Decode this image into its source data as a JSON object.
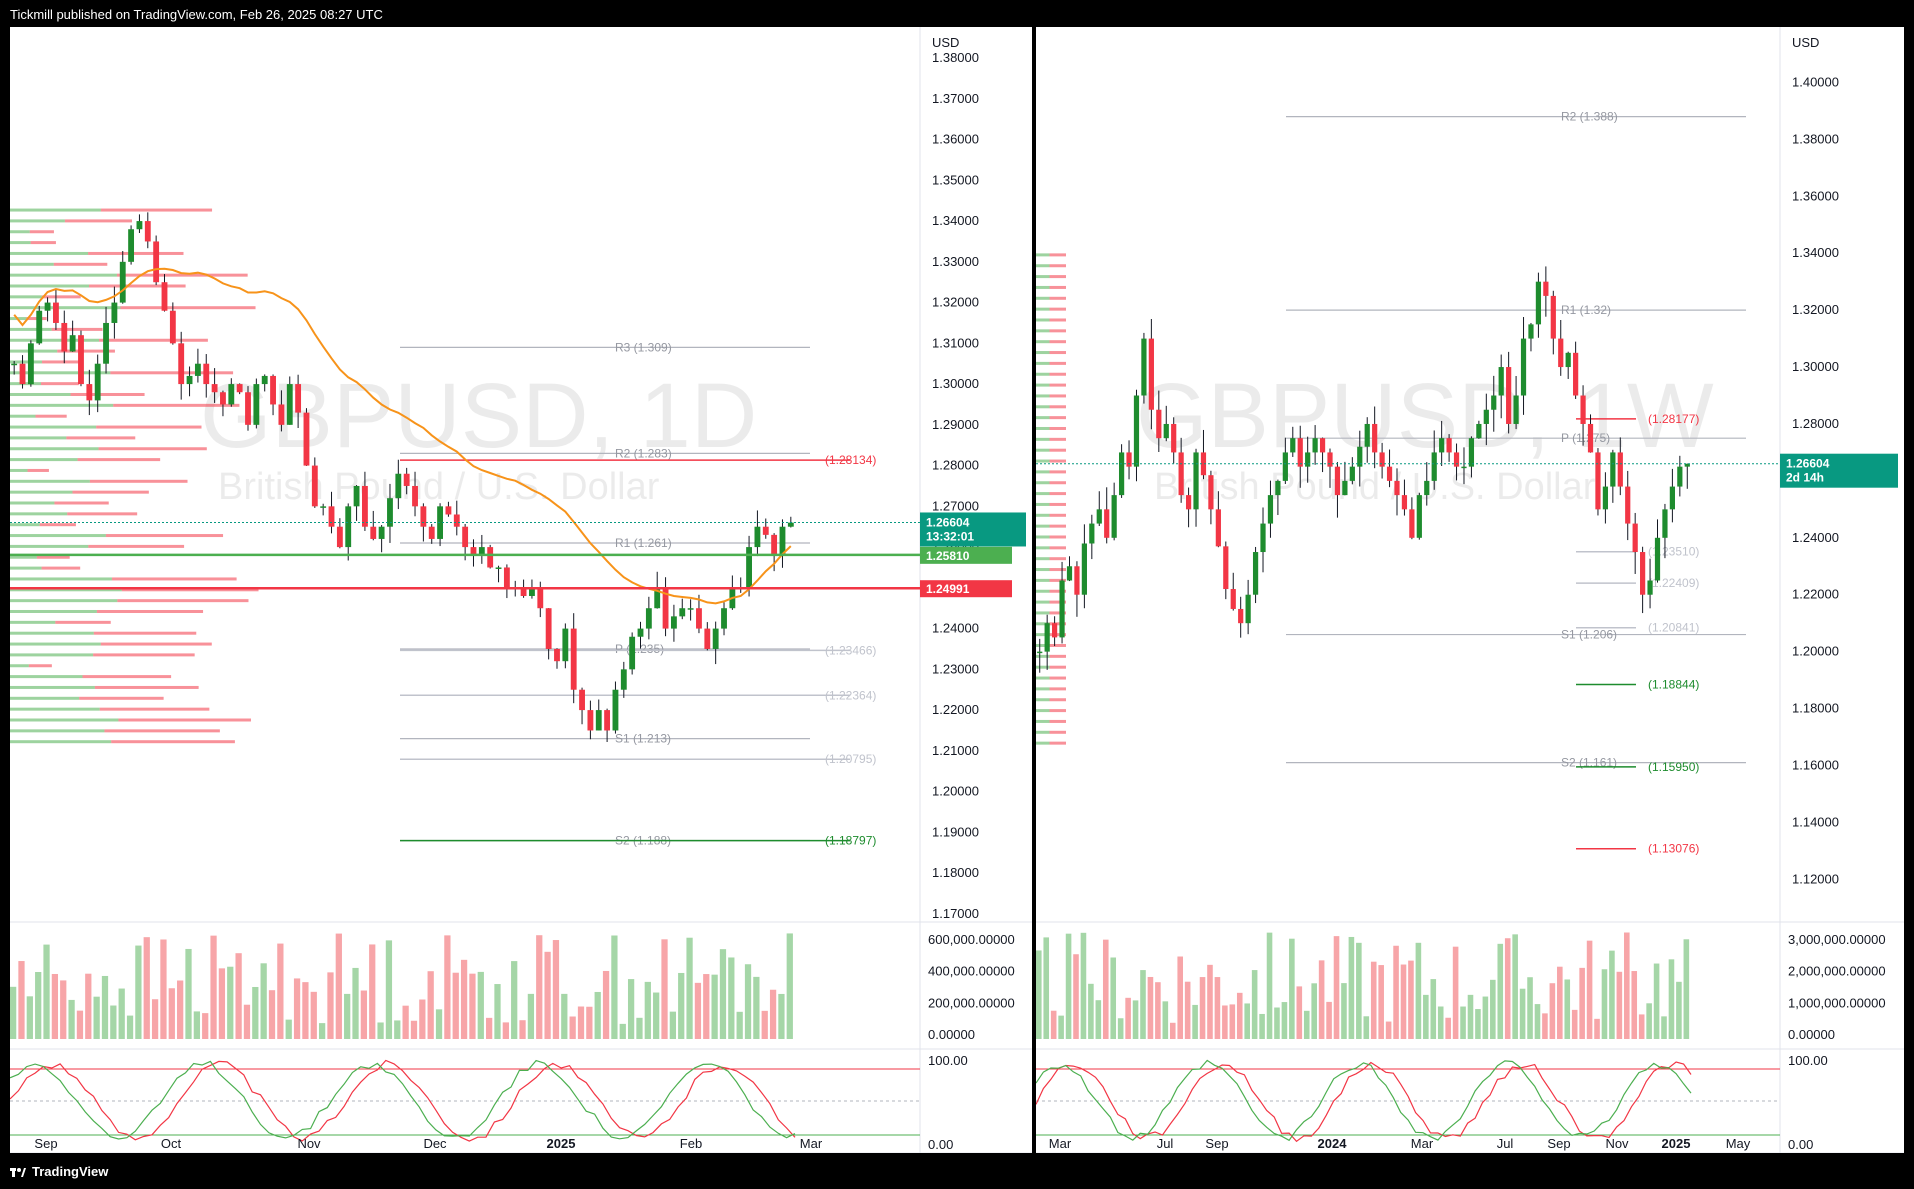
{
  "header": {
    "published": "Tickmill published on TradingView.com, Feb 26, 2025 08:27 UTC"
  },
  "footer": {
    "brand": "TradingView"
  },
  "chart_data": [
    {
      "type": "candlestick",
      "symbol": "GBPUSD",
      "timeframe": "1D",
      "watermark_title": "GBPUSD, 1D",
      "watermark_subtitle": "British Pound / U.S. Dollar",
      "currency": "USD",
      "yticks": [
        "1.38000",
        "1.37000",
        "1.36000",
        "1.35000",
        "1.34000",
        "1.33000",
        "1.32000",
        "1.31000",
        "1.30000",
        "1.29000",
        "1.28000",
        "1.27000",
        "1.26000",
        "1.25000",
        "1.24000",
        "1.23000",
        "1.22000",
        "1.21000",
        "1.20000",
        "1.19000",
        "1.18000",
        "1.17000"
      ],
      "ylim": [
        1.17,
        1.38
      ],
      "xticks": [
        "Sep",
        "Oct",
        "Nov",
        "Dec",
        "2025",
        "Feb",
        "Mar"
      ],
      "price_tag": {
        "value": "1.26604",
        "countdown": "13:32:01",
        "color": "#089981"
      },
      "level_tags": [
        {
          "value": "1.25810",
          "color": "#4caf50"
        },
        {
          "value": "1.24991",
          "color": "#f23645"
        }
      ],
      "pivots": [
        {
          "label": "R3 (1.309)",
          "value": 1.309
        },
        {
          "label": "R2 (1.283)",
          "value": 1.283
        },
        {
          "label": "R1 (1.261)",
          "value": 1.261
        },
        {
          "label": "P (1.235)",
          "value": 1.235
        },
        {
          "label": "S1 (1.213)",
          "value": 1.213
        },
        {
          "label": "S2 (1.188)",
          "value": 1.188
        }
      ],
      "levels": [
        {
          "label": "(1.28134)",
          "value": 1.28134,
          "color": "#f23645"
        },
        {
          "label": "(1.23466)",
          "value": 1.23466,
          "color": "#c0c3cc"
        },
        {
          "label": "(1.22364)",
          "value": 1.22364,
          "color": "#c0c3cc"
        },
        {
          "label": "(1.20795)",
          "value": 1.20795,
          "color": "#c0c3cc"
        },
        {
          "label": "(1.18797)",
          "value": 1.18797,
          "color": "#1e8c2e"
        }
      ],
      "volume_ticks": [
        "600,000.00000",
        "400,000.00000",
        "200,000.00000",
        "0.00000"
      ],
      "osc_ticks": [
        "100.00",
        "0.00"
      ],
      "series": [
        {
          "name": "GBPUSD 1D",
          "values": [
            1.305,
            1.3,
            1.31,
            1.318,
            1.32,
            1.315,
            1.308,
            1.312,
            1.3,
            1.296,
            1.305,
            1.315,
            1.32,
            1.33,
            1.338,
            1.34,
            1.335,
            1.325,
            1.318,
            1.31,
            1.3,
            1.302,
            1.305,
            1.3,
            1.298,
            1.295,
            1.3,
            1.298,
            1.29,
            1.3,
            1.302,
            1.295,
            1.29,
            1.3,
            1.293,
            1.28,
            1.27,
            1.27,
            1.265,
            1.26,
            1.27,
            1.275,
            1.265,
            1.262,
            1.265,
            1.272,
            1.278,
            1.275,
            1.27,
            1.265,
            1.262,
            1.27,
            1.268,
            1.265,
            1.26,
            1.258,
            1.26,
            1.255,
            1.255,
            1.25,
            1.25,
            1.248,
            1.25,
            1.245,
            1.235,
            1.232,
            1.24,
            1.225,
            1.22,
            1.215,
            1.22,
            1.215,
            1.225,
            1.23,
            1.238,
            1.24,
            1.245,
            1.25,
            1.24,
            1.243,
            1.245,
            1.245,
            1.24,
            1.235,
            1.24,
            1.245,
            1.25,
            1.25,
            1.26,
            1.265,
            1.263,
            1.258,
            1.265,
            1.266
          ]
        }
      ]
    },
    {
      "type": "candlestick",
      "symbol": "GBPUSD",
      "timeframe": "1W",
      "watermark_title": "GBPUSD, 1W",
      "watermark_subtitle": "British Pound / U.S. Dollar",
      "currency": "USD",
      "yticks": [
        "1.40000",
        "1.38000",
        "1.36000",
        "1.34000",
        "1.32000",
        "1.30000",
        "1.28000",
        "1.26000",
        "1.24000",
        "1.22000",
        "1.20000",
        "1.18000",
        "1.16000",
        "1.14000",
        "1.12000"
      ],
      "ylim": [
        1.105,
        1.41
      ],
      "xticks": [
        "Mar",
        "Jul",
        "Sep",
        "2024",
        "Mar",
        "Jul",
        "Sep",
        "Nov",
        "2025",
        "May"
      ],
      "price_tag": {
        "value": "1.26604",
        "countdown": "2d 14h",
        "color": "#089981"
      },
      "pivots": [
        {
          "label": "R2 (1.388)",
          "value": 1.388
        },
        {
          "label": "R1 (1.32)",
          "value": 1.32
        },
        {
          "label": "P (1.275)",
          "value": 1.275
        },
        {
          "label": "S1 (1.206)",
          "value": 1.206
        },
        {
          "label": "S2 (1.161)",
          "value": 1.161
        }
      ],
      "levels": [
        {
          "label": "(1.28177)",
          "value": 1.28177,
          "color": "#f23645"
        },
        {
          "label": "(1.23510)",
          "value": 1.2351,
          "color": "#c0c3cc"
        },
        {
          "label": "(1.22409)",
          "value": 1.22409,
          "color": "#c0c3cc"
        },
        {
          "label": "(1.20841)",
          "value": 1.20841,
          "color": "#c0c3cc"
        },
        {
          "label": "(1.18844)",
          "value": 1.18844,
          "color": "#1e8c2e"
        },
        {
          "label": "(1.15950)",
          "value": 1.1595,
          "color": "#1e8c2e"
        },
        {
          "label": "(1.13076)",
          "value": 1.13076,
          "color": "#f23645"
        }
      ],
      "volume_ticks": [
        "3,000,000.00000",
        "2,000,000.00000",
        "1,000,000.00000",
        "0.00000"
      ],
      "osc_ticks": [
        "100.00",
        "0.00"
      ],
      "series": [
        {
          "name": "GBPUSD 1W",
          "values": [
            1.2,
            1.21,
            1.205,
            1.225,
            1.23,
            1.22,
            1.238,
            1.245,
            1.25,
            1.24,
            1.255,
            1.27,
            1.265,
            1.29,
            1.31,
            1.285,
            1.275,
            1.28,
            1.27,
            1.255,
            1.25,
            1.27,
            1.262,
            1.25,
            1.237,
            1.222,
            1.215,
            1.21,
            1.22,
            1.235,
            1.245,
            1.255,
            1.26,
            1.27,
            1.275,
            1.265,
            1.27,
            1.275,
            1.27,
            1.265,
            1.255,
            1.26,
            1.265,
            1.272,
            1.28,
            1.27,
            1.265,
            1.26,
            1.255,
            1.25,
            1.24,
            1.255,
            1.26,
            1.27,
            1.275,
            1.27,
            1.265,
            1.265,
            1.275,
            1.28,
            1.285,
            1.29,
            1.3,
            1.28,
            1.29,
            1.31,
            1.315,
            1.33,
            1.325,
            1.31,
            1.3,
            1.305,
            1.29,
            1.28,
            1.27,
            1.25,
            1.258,
            1.27,
            1.258,
            1.245,
            1.235,
            1.22,
            1.225,
            1.24,
            1.25,
            1.258,
            1.265,
            1.266
          ]
        }
      ]
    }
  ]
}
